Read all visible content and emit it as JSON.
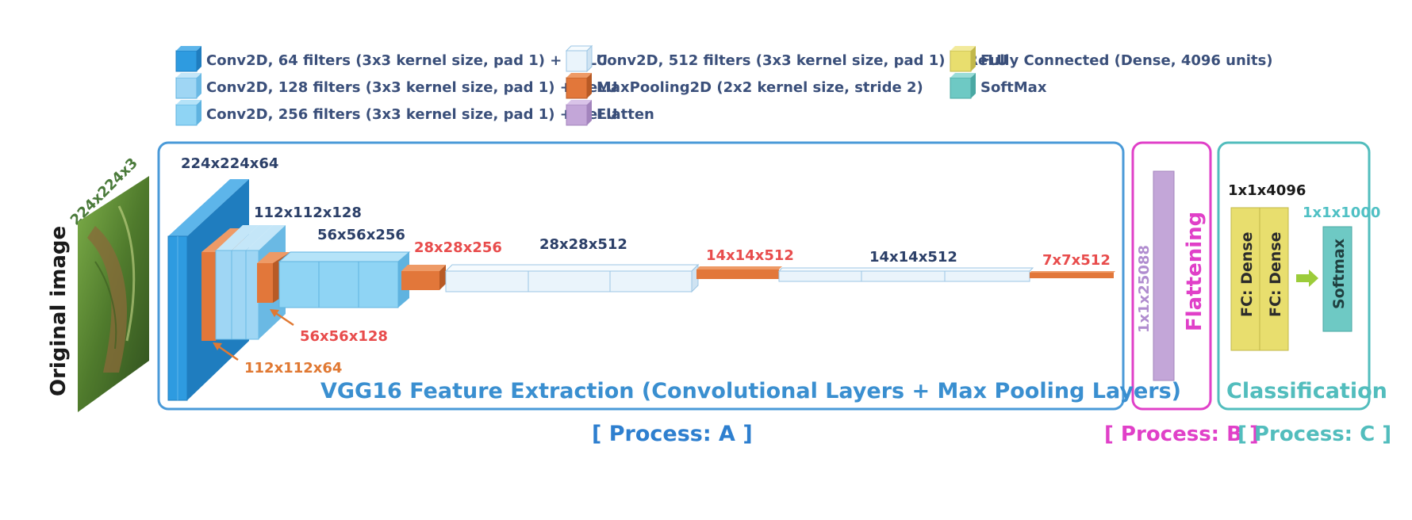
{
  "colors": {
    "conv64": "#2e9be0",
    "conv128": "#7cc8f0",
    "conv256": "#8fd4f4",
    "conv512": "#eaf4fb",
    "maxpool": "#e2773a",
    "flatten": "#c3a6d8",
    "dense": "#e8de6e",
    "softmax": "#6ec9c4",
    "frameA": "#4a9ad8",
    "frameB": "#e040c8",
    "frameC": "#52bdbd",
    "dim_dark": "#2b3f68",
    "dim_red": "#e84c4c",
    "dim_orange": "#e07832"
  },
  "legend": {
    "conv64": "Conv2D, 64 filters (3x3 kernel size, pad 1) + ReLU",
    "conv128": "Conv2D, 128 filters (3x3 kernel size, pad 1) + ReLU",
    "conv256": "Conv2D, 256 filters (3x3 kernel size, pad 1) + ReLU",
    "conv512": "Conv2D, 512 filters (3x3 kernel size, pad 1) + ReLU",
    "maxpool": "MaxPooling2D (2x2 kernel size, stride 2)",
    "flatten": "Flatten",
    "dense": "Fully Connected (Dense, 4096 units)",
    "softmax": "SoftMax"
  },
  "input": {
    "label": "Original image",
    "size": "224x224x3"
  },
  "dims": {
    "d1": "224x224x64",
    "d2": "112x112x128",
    "d3": "56x56x256",
    "d4": "28x28x256",
    "d5": "28x28x512",
    "d6": "14x14x512",
    "d7": "14x14x512",
    "d8": "7x7x512",
    "d9": "56x56x128",
    "d10": "112x112x64",
    "flat": "1x1x25088",
    "fc": "1x1x4096",
    "sm": "1x1x1000"
  },
  "sections": {
    "feature_title": "VGG16 Feature Extraction (Convolutional Layers + Max Pooling Layers)",
    "flattening": "Flattening",
    "classification": "Classification",
    "fc1": "FC: Dense",
    "fc2": "FC: Dense",
    "softmax": "Softmax"
  },
  "process": {
    "a": "[ Process: A ]",
    "b": "[ Process: B ]",
    "c": "[ Process: C ]"
  }
}
